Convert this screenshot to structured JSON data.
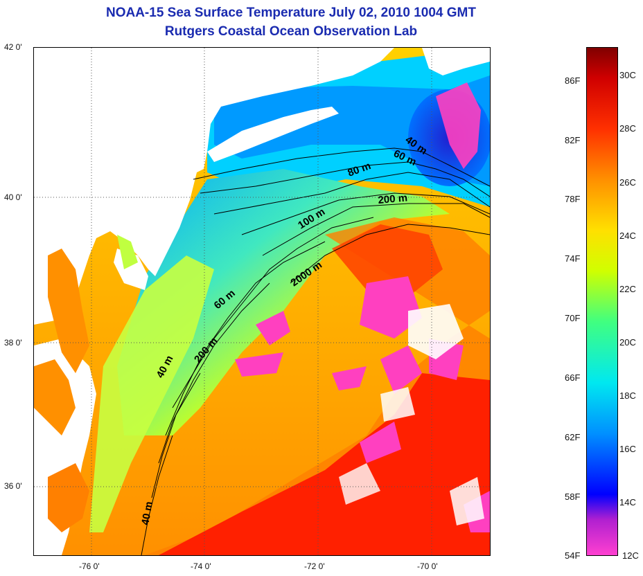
{
  "title": {
    "line1": "NOAA-15 Sea Surface Temperature July 02, 2010 1004 GMT",
    "line2": "Rutgers Coastal Ocean Observation Lab"
  },
  "map": {
    "lat_range": [
      35,
      42
    ],
    "lon_range": [
      -77,
      -69
    ],
    "lat_labels": [
      "42 0'",
      "40 0'",
      "38 0'",
      "36 0'"
    ],
    "lon_labels": [
      "-76 0'",
      "-74 0'",
      "-72 0'",
      "-70 0'"
    ],
    "contour_labels": [
      "40 m",
      "60 m",
      "80 m",
      "200 m",
      "100 m",
      "2000 m",
      "60 m",
      "200 m",
      "40 m",
      "40 m"
    ],
    "land_color": "#ffffff",
    "cloud_color": "#ff40c0"
  },
  "colorbar": {
    "fahrenheit_labels": [
      "86F",
      "82F",
      "78F",
      "74F",
      "70F",
      "66F",
      "62F",
      "58F",
      "54F"
    ],
    "celsius_labels": [
      "30C",
      "28C",
      "26C",
      "24C",
      "22C",
      "20C",
      "18C",
      "16C",
      "14C",
      "12C"
    ],
    "range_c": [
      12,
      31
    ],
    "colors": [
      "#ff40d0",
      "#9000c0",
      "#0000ff",
      "#0090ff",
      "#00e0ff",
      "#40ff80",
      "#c8ff00",
      "#ffe000",
      "#ff9000",
      "#ff3000",
      "#e00000",
      "#800000"
    ]
  }
}
